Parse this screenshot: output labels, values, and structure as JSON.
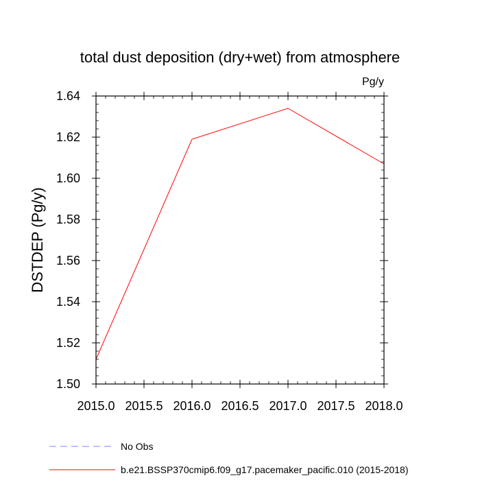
{
  "chart_data": {
    "type": "line",
    "title": "total dust deposition (dry+wet) from atmosphere",
    "units_label": "Pg/y",
    "ylabel": "DSTDEP  (Pg/y)",
    "xlabel": "",
    "xlim": [
      2015.0,
      2018.0
    ],
    "ylim": [
      1.5,
      1.64
    ],
    "x_ticks": [
      2015.0,
      2015.5,
      2016.0,
      2016.5,
      2017.0,
      2017.5,
      2018.0
    ],
    "x_tick_labels": [
      "2015.0",
      "2015.5",
      "2016.0",
      "2016.5",
      "2017.0",
      "2017.5",
      "2018.0"
    ],
    "y_ticks": [
      1.5,
      1.52,
      1.54,
      1.56,
      1.58,
      1.6,
      1.62,
      1.64
    ],
    "y_tick_labels": [
      "1.50",
      "1.52",
      "1.54",
      "1.56",
      "1.58",
      "1.60",
      "1.62",
      "1.64"
    ],
    "grid": false,
    "legend_position": "bottom",
    "series": [
      {
        "name": "b.e21.BSSP370cmip6.f09_g17.pacemaker_pacific.010 (2015-2018)",
        "color": "#ff0000",
        "style": "solid",
        "x": [
          2015.0,
          2016.0,
          2017.0,
          2018.0
        ],
        "y": [
          1.512,
          1.619,
          1.634,
          1.607
        ]
      }
    ],
    "legend": [
      {
        "label": "No Obs",
        "color": "#8080ff",
        "style": "dashed"
      },
      {
        "label": "b.e21.BSSP370cmip6.f09_g17.pacemaker_pacific.010 (2015-2018)",
        "color": "#ff0000",
        "style": "solid"
      }
    ]
  }
}
